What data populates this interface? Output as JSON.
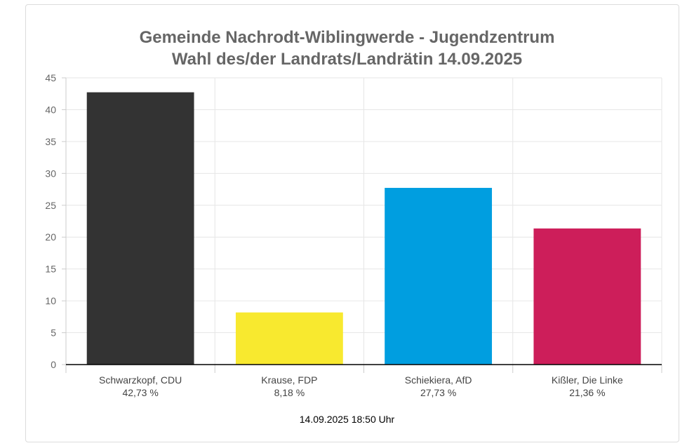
{
  "chart_data": {
    "type": "bar",
    "title": "Gemeinde Nachrodt-Wiblingwerde - Jugendzentrum",
    "subtitle": "Wahl des/der Landrats/Landrätin 14.09.2025",
    "categories": [
      "Schwarzkopf, CDU",
      "Krause, FDP",
      "Schiekiera, AfD",
      "Kißler, Die Linke"
    ],
    "value_labels": [
      "42,73 %",
      "8,18 %",
      "27,73 %",
      "21,36 %"
    ],
    "values": [
      42.73,
      8.18,
      27.73,
      21.36
    ],
    "colors": [
      "#333333",
      "#f8e92f",
      "#009ee0",
      "#cd1e5a"
    ],
    "ylim": [
      0,
      45
    ],
    "yticks": [
      "0",
      "5",
      "10",
      "15",
      "20",
      "25",
      "30",
      "35",
      "40",
      "45"
    ],
    "grid": true,
    "xlabel": "",
    "ylabel": ""
  },
  "footer": {
    "timestamp": "14.09.2025 18:50 Uhr"
  }
}
